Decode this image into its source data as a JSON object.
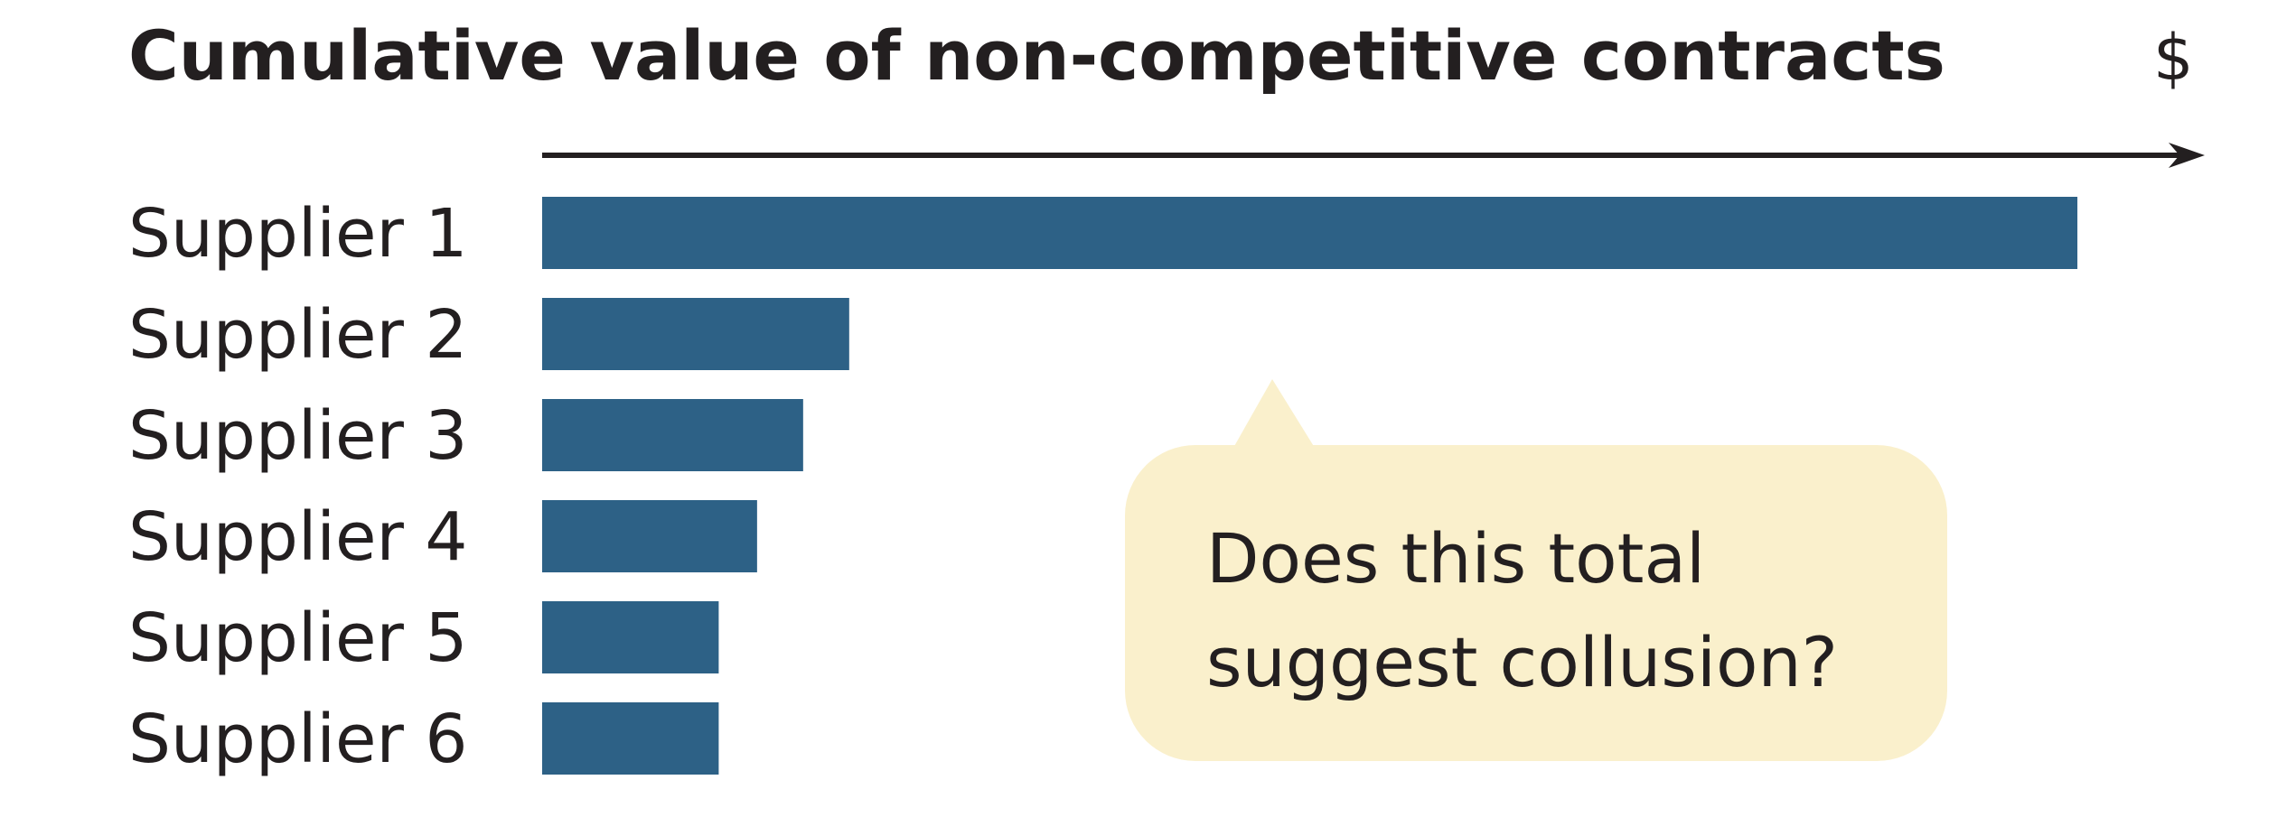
{
  "chart_data": {
    "type": "bar",
    "orientation": "horizontal",
    "title": "Cumulative value of non-competitive contracts",
    "unit_label": "$",
    "categories": [
      "Supplier 1",
      "Supplier 2",
      "Supplier 3",
      "Supplier 4",
      "Supplier 5",
      "Supplier 6"
    ],
    "values": [
      100,
      20,
      17,
      14,
      11.5,
      11.5
    ],
    "value_scale": "relative",
    "xlim": [
      0,
      107
    ],
    "grid": false,
    "axis_arrow": true,
    "colors": {
      "bar": "#2d6186",
      "callout": "#faf0cc",
      "text": "#231f20"
    },
    "callout": {
      "lines": [
        "Does this total",
        "suggest collusion?"
      ],
      "points_to": "Supplier 1"
    }
  }
}
